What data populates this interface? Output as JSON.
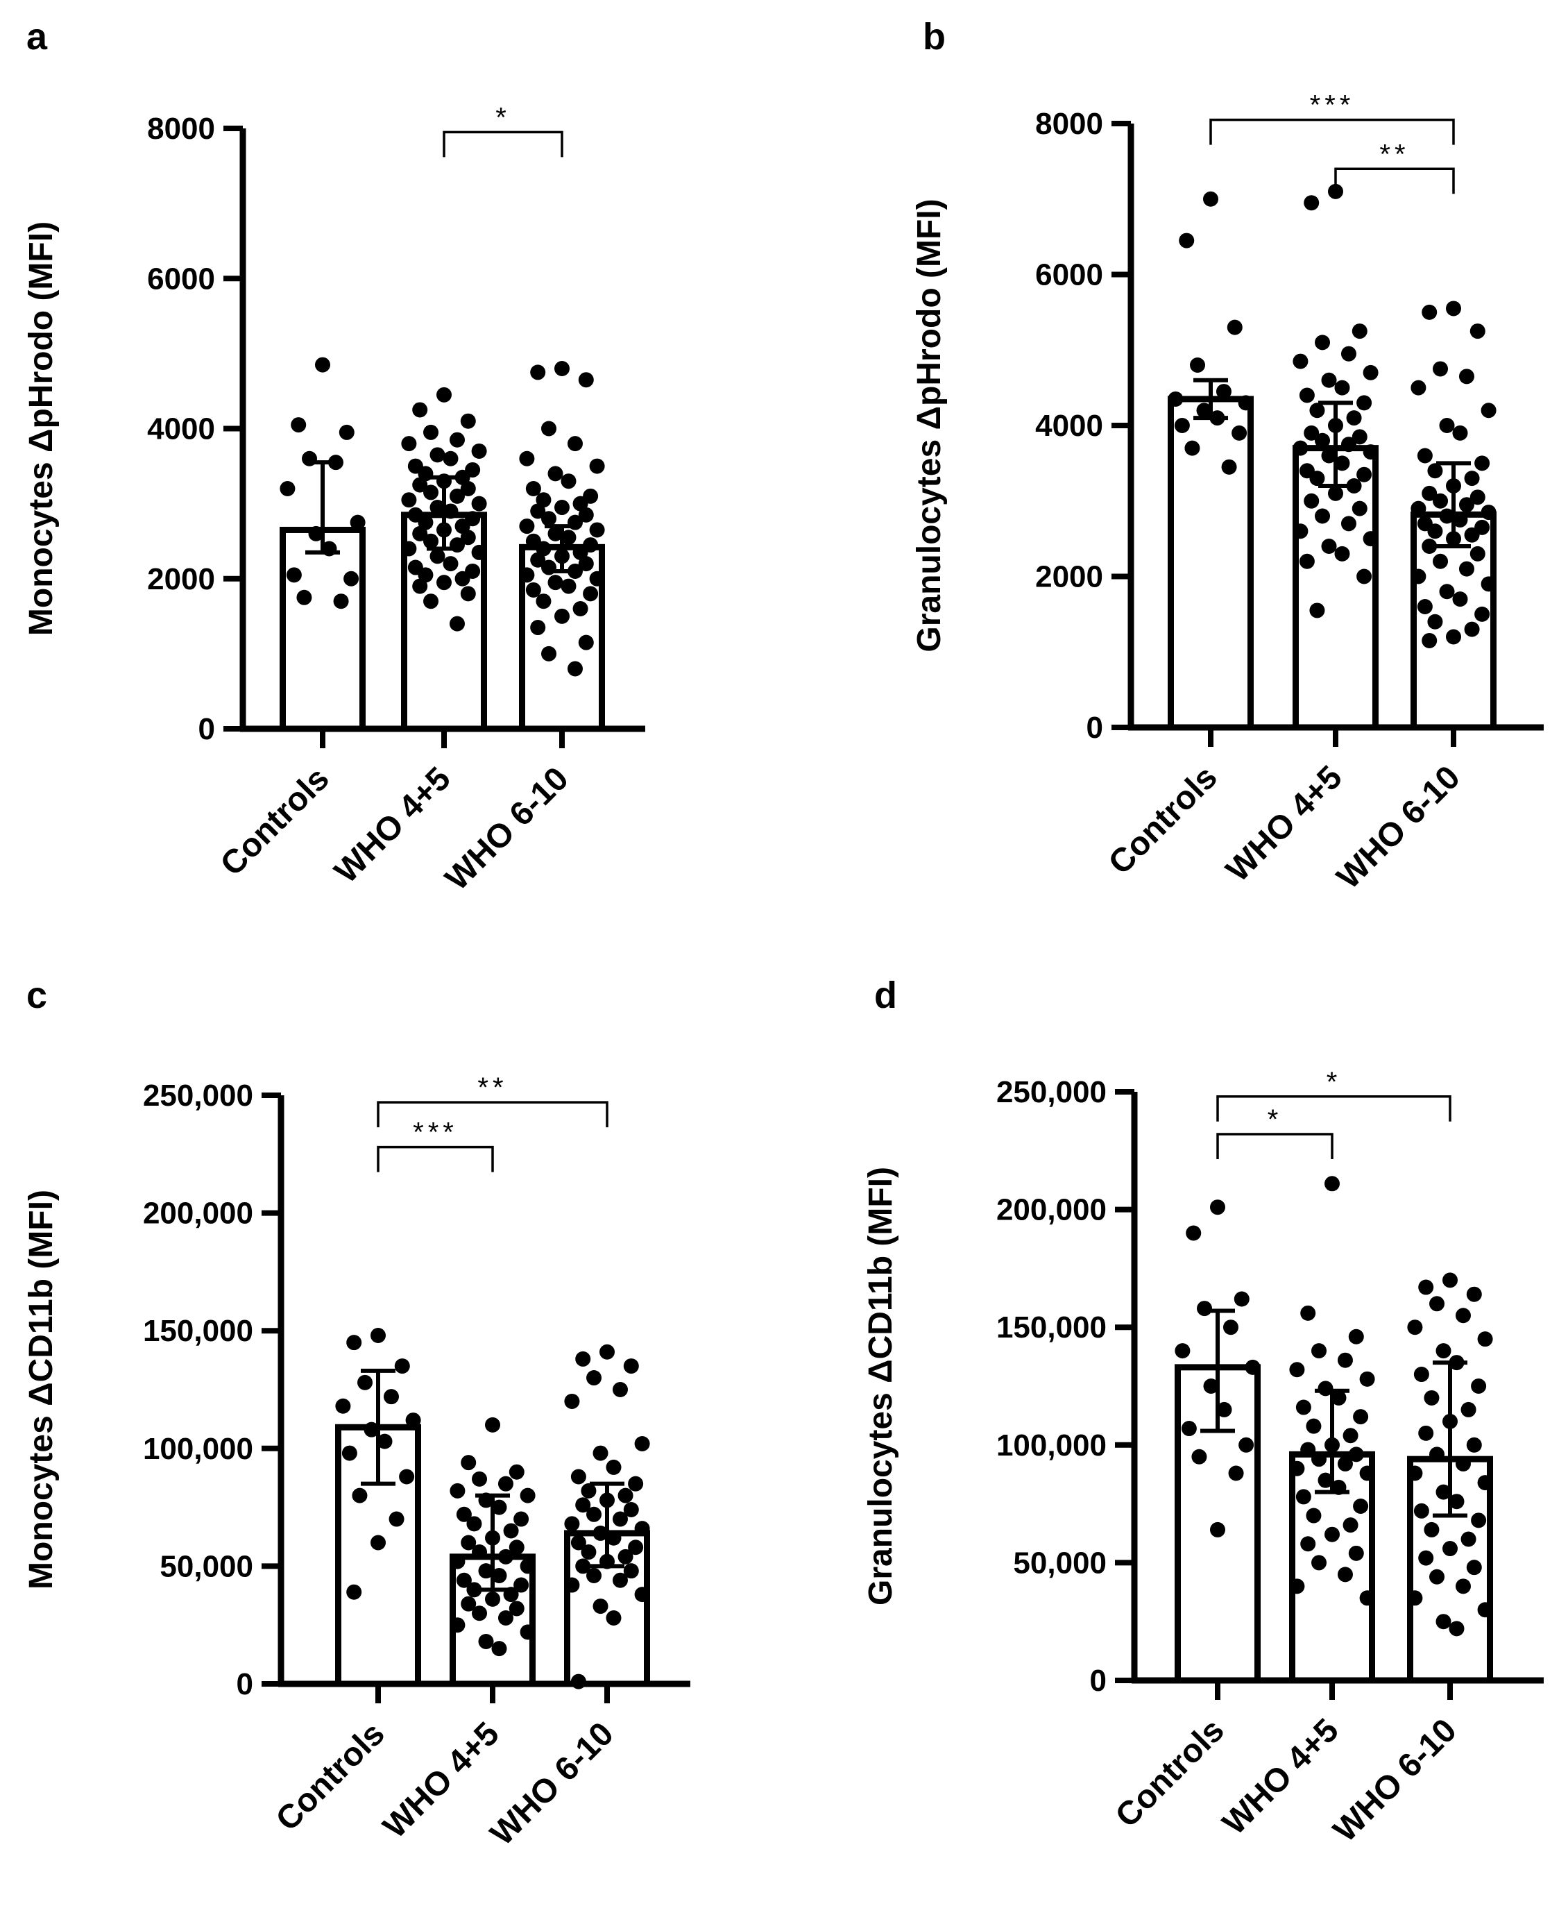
{
  "chart_data": [
    {
      "panel": "a",
      "type": "bar",
      "ylabel": "Monocytes ΔpHrodo (MFI)",
      "categories": [
        "Controls",
        "WHO 4+5",
        "WHO 6-10"
      ],
      "ylim": [
        0,
        8000
      ],
      "yticks": [
        0,
        2000,
        4000,
        6000,
        8000
      ],
      "tick_labels": [
        "0",
        "2000",
        "4000",
        "6000",
        "8000"
      ],
      "bars": [
        2650,
        2850,
        2420
      ],
      "error_low": [
        2350,
        2400,
        2100
      ],
      "error_high": [
        3550,
        3350,
        2700
      ],
      "points": [
        [
          4850,
          4050,
          3950,
          3600,
          3550,
          3200,
          2750,
          2600,
          2400,
          2050,
          2000,
          1750,
          1700
        ],
        [
          4450,
          4250,
          4100,
          3950,
          3850,
          3800,
          3700,
          3650,
          3600,
          3500,
          3450,
          3400,
          3350,
          3300,
          3250,
          3200,
          3150,
          3100,
          3050,
          3000,
          2950,
          2900,
          2850,
          2800,
          2750,
          2700,
          2650,
          2600,
          2550,
          2500,
          2450,
          2400,
          2350,
          2300,
          2200,
          2150,
          2100,
          2050,
          2000,
          1950,
          1900,
          1800,
          1700,
          1400
        ],
        [
          4800,
          4750,
          4650,
          4000,
          3800,
          3600,
          3500,
          3400,
          3300,
          3200,
          3100,
          3050,
          3000,
          2950,
          2900,
          2850,
          2800,
          2750,
          2700,
          2650,
          2600,
          2550,
          2500,
          2450,
          2400,
          2350,
          2300,
          2250,
          2200,
          2150,
          2100,
          2050,
          2000,
          1950,
          1900,
          1850,
          1800,
          1700,
          1600,
          1500,
          1350,
          1150,
          1000,
          800
        ]
      ],
      "sig": [
        {
          "from": 1,
          "to": 2,
          "label": "*",
          "y": 7950
        }
      ]
    },
    {
      "panel": "b",
      "type": "bar",
      "ylabel": "Granulocytes ΔpHrodo (MFI)",
      "categories": [
        "Controls",
        "WHO 4+5",
        "WHO 6-10"
      ],
      "ylim": [
        0,
        8000
      ],
      "yticks": [
        0,
        2000,
        4000,
        6000,
        8000
      ],
      "tick_labels": [
        "0",
        "2000",
        "4000",
        "6000",
        "8000"
      ],
      "bars": [
        4350,
        3700,
        2820
      ],
      "error_low": [
        4100,
        3200,
        2400
      ],
      "error_high": [
        4600,
        4300,
        3500
      ],
      "points": [
        [
          7000,
          6450,
          5300,
          4800,
          4450,
          4350,
          4300,
          4200,
          4100,
          4000,
          3900,
          3700,
          3450
        ],
        [
          7100,
          6950,
          5250,
          5100,
          4950,
          4850,
          4700,
          4600,
          4500,
          4400,
          4300,
          4200,
          4100,
          4000,
          3900,
          3850,
          3800,
          3750,
          3700,
          3650,
          3600,
          3500,
          3400,
          3350,
          3300,
          3200,
          3100,
          3000,
          2900,
          2800,
          2700,
          2600,
          2500,
          2400,
          2300,
          2200,
          2000,
          1550
        ],
        [
          5550,
          5500,
          5250,
          4750,
          4650,
          4500,
          4200,
          4000,
          3900,
          3600,
          3500,
          3400,
          3300,
          3200,
          3100,
          3050,
          3000,
          2950,
          2900,
          2850,
          2800,
          2750,
          2700,
          2650,
          2600,
          2550,
          2500,
          2400,
          2300,
          2200,
          2100,
          2000,
          1900,
          1800,
          1700,
          1600,
          1500,
          1400,
          1300,
          1200,
          1150
        ]
      ],
      "sig": [
        {
          "from": 0,
          "to": 2,
          "label": "***",
          "y": 8050
        },
        {
          "from": 1,
          "to": 2,
          "label": "**",
          "y": 7400
        }
      ]
    },
    {
      "panel": "c",
      "type": "bar",
      "ylabel": "Monocytes ΔCD11b (MFI)",
      "categories": [
        "Controls",
        "WHO 4+5",
        "WHO 6-10"
      ],
      "ylim": [
        0,
        250000
      ],
      "yticks": [
        0,
        50000,
        100000,
        150000,
        200000,
        250000
      ],
      "tick_labels": [
        "0",
        "50,000",
        "100,000",
        "150,000",
        "200,000",
        "250,000"
      ],
      "bars": [
        109000,
        54000,
        64000
      ],
      "error_low": [
        85000,
        40000,
        50000
      ],
      "error_high": [
        133000,
        80000,
        85000
      ],
      "points": [
        [
          148000,
          145000,
          135000,
          128000,
          122000,
          118000,
          112000,
          108000,
          103000,
          98000,
          88000,
          80000,
          70000,
          60000,
          39000
        ],
        [
          110000,
          94000,
          90000,
          87000,
          85000,
          82000,
          80000,
          78000,
          75000,
          72000,
          70000,
          68000,
          65000,
          62000,
          60000,
          58000,
          56000,
          54000,
          52000,
          50000,
          48000,
          46000,
          44000,
          42000,
          40000,
          38000,
          36000,
          34000,
          32000,
          30000,
          28000,
          25000,
          22000,
          18000,
          15000
        ],
        [
          141000,
          138000,
          135000,
          130000,
          125000,
          120000,
          102000,
          98000,
          92000,
          88000,
          85000,
          82000,
          80000,
          78000,
          76000,
          74000,
          72000,
          70000,
          68000,
          66000,
          64000,
          62000,
          60000,
          58000,
          56000,
          54000,
          52000,
          50000,
          48000,
          46000,
          44000,
          42000,
          38000,
          33000,
          28000,
          1000
        ]
      ],
      "sig": [
        {
          "from": 0,
          "to": 2,
          "label": "**",
          "y": 247000
        },
        {
          "from": 0,
          "to": 1,
          "label": "***",
          "y": 228000
        }
      ]
    },
    {
      "panel": "d",
      "type": "bar",
      "ylabel": "Granulocytes ΔCD11b (MFI)",
      "categories": [
        "Controls",
        "WHO 4+5",
        "WHO 6-10"
      ],
      "ylim": [
        0,
        250000
      ],
      "yticks": [
        0,
        50000,
        100000,
        150000,
        200000,
        250000
      ],
      "tick_labels": [
        "0",
        "50,000",
        "100,000",
        "150,000",
        "200,000",
        "250,000"
      ],
      "bars": [
        133000,
        96000,
        94000
      ],
      "error_low": [
        106000,
        80000,
        70000
      ],
      "error_high": [
        157000,
        123000,
        135000
      ],
      "points": [
        [
          201000,
          190000,
          162000,
          158000,
          150000,
          140000,
          133000,
          125000,
          115000,
          107000,
          100000,
          95000,
          88000,
          64000
        ],
        [
          211000,
          156000,
          146000,
          140000,
          136000,
          132000,
          128000,
          124000,
          120000,
          116000,
          112000,
          108000,
          104000,
          100000,
          98000,
          96000,
          94000,
          92000,
          90000,
          88000,
          85000,
          82000,
          78000,
          74000,
          70000,
          66000,
          62000,
          58000,
          54000,
          50000,
          45000,
          40000,
          35000
        ],
        [
          170000,
          167000,
          164000,
          160000,
          155000,
          150000,
          145000,
          140000,
          135000,
          130000,
          125000,
          120000,
          115000,
          110000,
          105000,
          100000,
          96000,
          92000,
          88000,
          84000,
          80000,
          76000,
          72000,
          68000,
          64000,
          60000,
          56000,
          52000,
          48000,
          44000,
          40000,
          35000,
          30000,
          25000,
          22000
        ]
      ],
      "sig": [
        {
          "from": 0,
          "to": 2,
          "label": "*",
          "y": 248000
        },
        {
          "from": 0,
          "to": 1,
          "label": "*",
          "y": 232000
        }
      ]
    }
  ]
}
